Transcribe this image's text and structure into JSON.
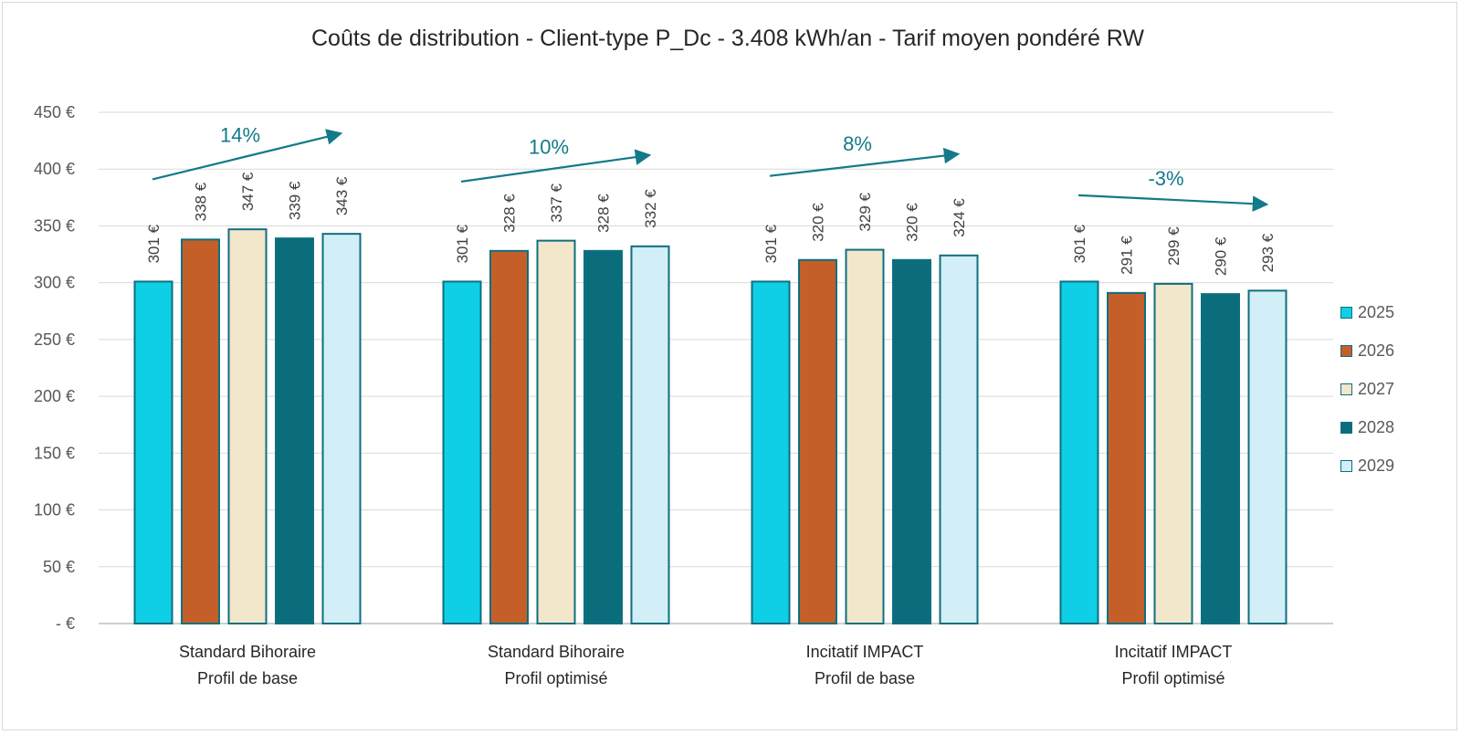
{
  "chart_data": {
    "type": "bar",
    "title": "Coûts de distribution - Client-type P_Dc - 3.408 kWh/an - Tarif moyen pondéré RW",
    "categories": [
      [
        "Standard Bihoraire",
        "Profil de base"
      ],
      [
        "Standard Bihoraire",
        "Profil optimisé"
      ],
      [
        "Incitatif IMPACT",
        "Profil de base"
      ],
      [
        "Incitatif IMPACT",
        "Profil optimisé"
      ]
    ],
    "series": [
      {
        "name": "2025",
        "color": "#0fcfe6",
        "values": [
          301,
          301,
          301,
          301
        ],
        "labels": [
          "301 €",
          "301 €",
          "301 €",
          "301 €"
        ]
      },
      {
        "name": "2026",
        "color": "#c55f29",
        "values": [
          338,
          328,
          320,
          291
        ],
        "labels": [
          "338 €",
          "328 €",
          "320 €",
          "291 €"
        ]
      },
      {
        "name": "2027",
        "color": "#f2e6cb",
        "values": [
          347,
          337,
          329,
          299
        ],
        "labels": [
          "347 €",
          "337 €",
          "329 €",
          "299 €"
        ]
      },
      {
        "name": "2028",
        "color": "#0b6d7c",
        "values": [
          339,
          328,
          320,
          290
        ],
        "labels": [
          "339 €",
          "328 €",
          "320 €",
          "290 €"
        ]
      },
      {
        "name": "2029",
        "color": "#d2eef6",
        "values": [
          343,
          332,
          324,
          293
        ],
        "labels": [
          "343 €",
          "332 €",
          "324 €",
          "293 €"
        ]
      }
    ],
    "bar_edge_color": "#0e6f7f",
    "ylim": [
      0,
      450
    ],
    "yticks": [
      0,
      50,
      100,
      150,
      200,
      250,
      300,
      350,
      400,
      450
    ],
    "ytick_labels": [
      "-  €",
      "50 €",
      "100 €",
      "150 €",
      "200 €",
      "250 €",
      "300 €",
      "350 €",
      "400 €",
      "450 €"
    ],
    "grid": true,
    "legend_position": "right",
    "annotations": [
      {
        "category": 0,
        "text": "14%",
        "from": 391,
        "to": 431,
        "color": "#137a89"
      },
      {
        "category": 1,
        "text": "10%",
        "from": 389,
        "to": 412,
        "color": "#137a89"
      },
      {
        "category": 2,
        "text": "8%",
        "from": 394,
        "to": 413,
        "color": "#137a89"
      },
      {
        "category": 3,
        "text": "-3%",
        "from": 377,
        "to": 369,
        "color": "#137a89"
      }
    ]
  }
}
